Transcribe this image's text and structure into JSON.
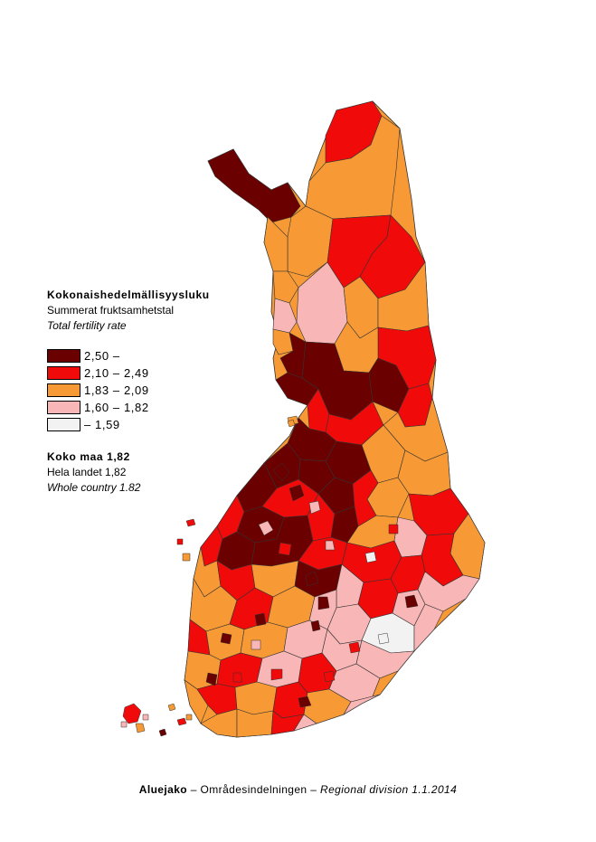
{
  "legend": {
    "title_fi": "Kokonaishedelmällisyysluku",
    "title_sv": "Summerat fruktsamhetstal",
    "title_en": "Total fertility rate",
    "classes": [
      {
        "label": "2,50 –",
        "color": "#6b0000"
      },
      {
        "label": "2,10 – 2,49",
        "color": "#f00a0a"
      },
      {
        "label": "1,83 – 2,09",
        "color": "#f79a35"
      },
      {
        "label": "1,60 – 1,82",
        "color": "#f8b6b6"
      },
      {
        "label": "– 1,59",
        "color": "#f2f2f2"
      }
    ]
  },
  "country": {
    "fi": "Koko maa 1,82",
    "sv": "Hela landet 1,82",
    "en": "Whole country 1.82"
  },
  "caption": {
    "fi": "Aluejako",
    "sep1": " – ",
    "sv": "Områdesindelningen",
    "sep2": " – ",
    "en": "Regional division 1.1.2014"
  }
}
